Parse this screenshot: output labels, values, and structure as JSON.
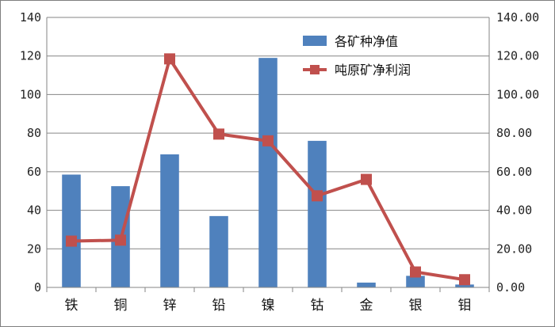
{
  "chart_data": {
    "type": "bar+line",
    "categories": [
      "铁",
      "铜",
      "锌",
      "铅",
      "镍",
      "钴",
      "金",
      "银",
      "钼"
    ],
    "series": [
      {
        "name": "各矿种净值",
        "type": "bar",
        "axis": "left",
        "color": "#4f81bd",
        "values": [
          58.5,
          52.5,
          69,
          37,
          119,
          76,
          2.5,
          6,
          1.5
        ]
      },
      {
        "name": "吨原矿净利润",
        "type": "line",
        "axis": "right",
        "color": "#c0504d",
        "marker": "square",
        "values": [
          24,
          24.5,
          118.5,
          79.5,
          76,
          47.5,
          56,
          8,
          4
        ]
      }
    ],
    "ylim_left": [
      0,
      140
    ],
    "yticks_left": [
      "0",
      "20",
      "40",
      "60",
      "80",
      "100",
      "120",
      "140"
    ],
    "ylim_right": [
      0,
      140
    ],
    "yticks_right": [
      "0.00",
      "20.00",
      "40.00",
      "60.00",
      "80.00",
      "100.00",
      "120.00",
      "140.00"
    ],
    "grid": true,
    "legend": "top-right"
  }
}
